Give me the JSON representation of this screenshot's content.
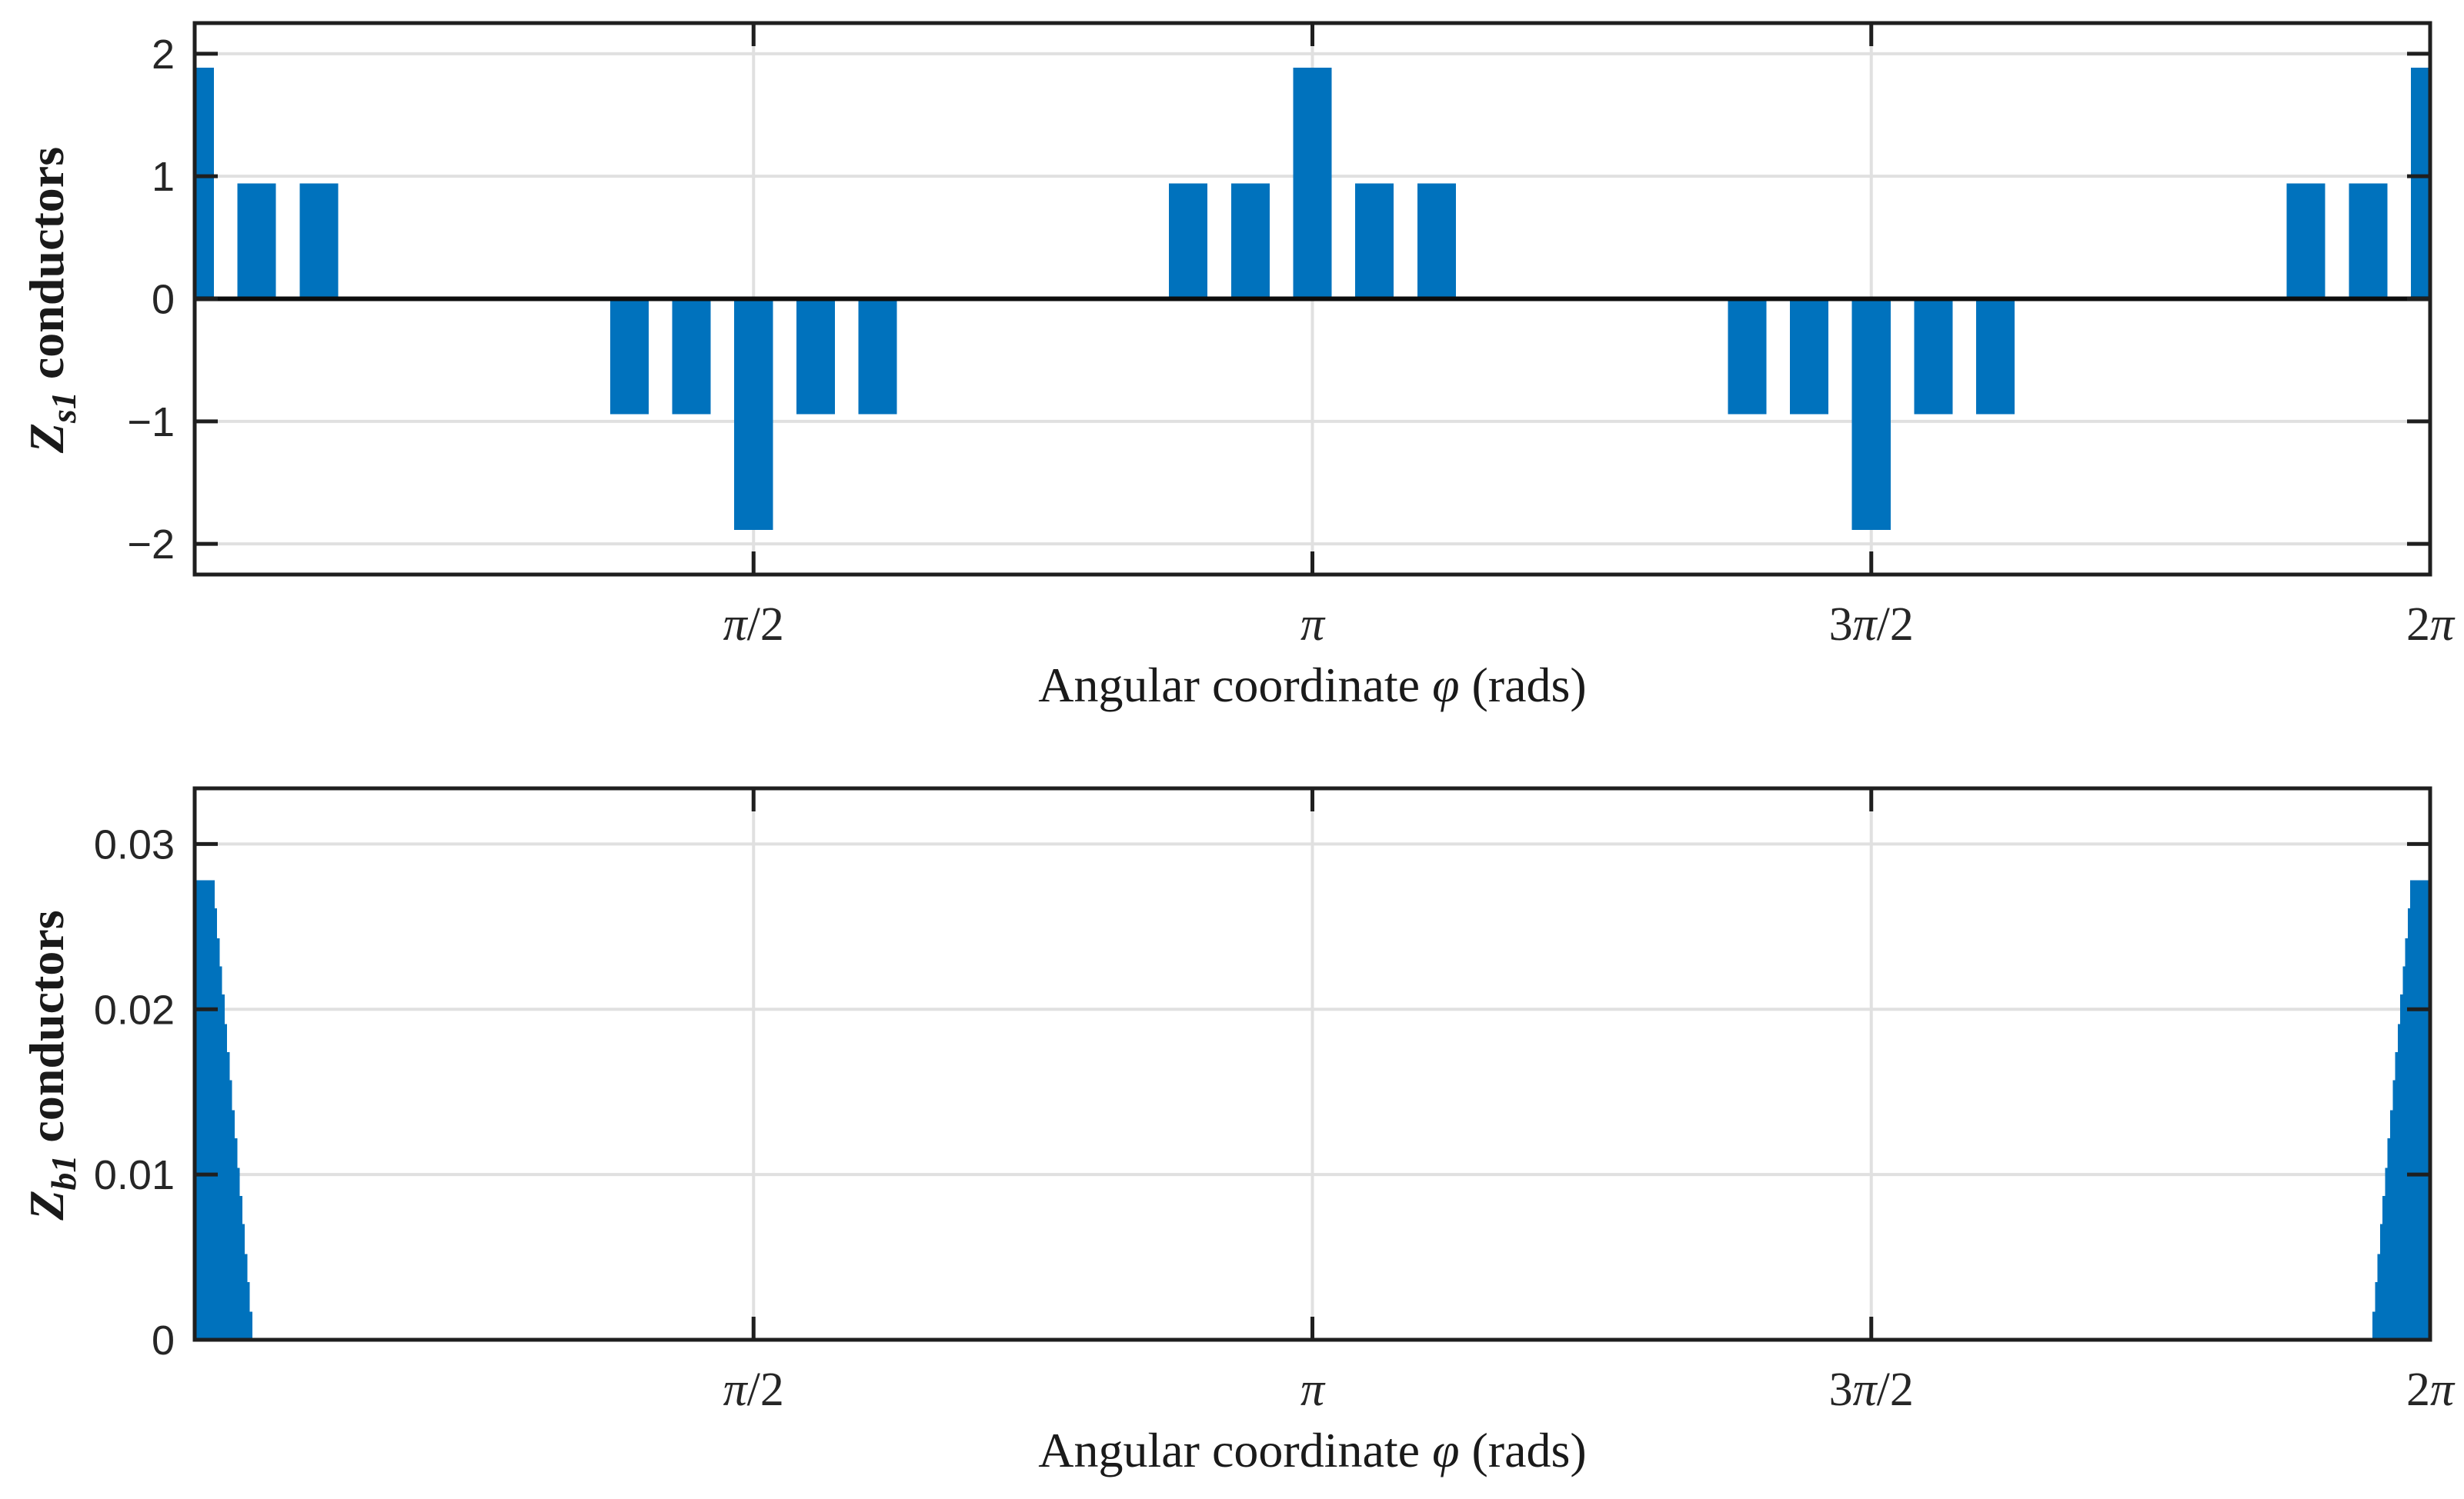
{
  "figure": {
    "bar_color": "#0072BD",
    "axis_color": "#1f1f1f",
    "grid_color": "#e0e0e0",
    "zero_line_color": "#0d0d0d",
    "tick_label_color": "#262626",
    "background": "#ffffff"
  },
  "chart_data": [
    {
      "type": "bar",
      "panel": "top",
      "xlabel": "Angular coordinate φ (rads)",
      "ylabel": {
        "symbol": "Z",
        "subscript": "s1",
        "rest": " conductors"
      },
      "xlim_deg": [
        0,
        360
      ],
      "ylim": [
        -2.25,
        2.25
      ],
      "grid": true,
      "bar_width_deg": 6.2,
      "xticks": [
        {
          "deg": 90,
          "label": "π/2"
        },
        {
          "deg": 180,
          "label": "π"
        },
        {
          "deg": 270,
          "label": "3π/2"
        },
        {
          "deg": 360,
          "label": "2π"
        }
      ],
      "yticks": [
        {
          "value": -2,
          "label": "−2"
        },
        {
          "value": -1,
          "label": "−1"
        },
        {
          "value": 0,
          "label": "0"
        },
        {
          "value": 1,
          "label": "1"
        },
        {
          "value": 2,
          "label": "2"
        }
      ],
      "bars_deg_value": [
        [
          0,
          1.885
        ],
        [
          10,
          0.9425
        ],
        [
          20,
          0.9425
        ],
        [
          70,
          -0.9425
        ],
        [
          80,
          -0.9425
        ],
        [
          90,
          -1.885
        ],
        [
          100,
          -0.9425
        ],
        [
          110,
          -0.9425
        ],
        [
          160,
          0.9425
        ],
        [
          170,
          0.9425
        ],
        [
          180,
          1.885
        ],
        [
          190,
          0.9425
        ],
        [
          200,
          0.9425
        ],
        [
          250,
          -0.9425
        ],
        [
          260,
          -0.9425
        ],
        [
          270,
          -1.885
        ],
        [
          280,
          -0.9425
        ],
        [
          290,
          -0.9425
        ],
        [
          340,
          0.9425
        ],
        [
          350,
          0.9425
        ],
        [
          360,
          1.885
        ]
      ]
    },
    {
      "type": "bar",
      "panel": "bottom",
      "xlabel": "Angular coordinate φ (rads)",
      "ylabel": {
        "symbol": "Z",
        "subscript": "b1",
        "rest": " conductors"
      },
      "xlim_deg": [
        0,
        360
      ],
      "ylim": [
        0,
        0.03337
      ],
      "grid": true,
      "peak_value": 0.0278,
      "step_width_deg": 0.403,
      "xticks": [
        {
          "deg": 90,
          "label": "π/2"
        },
        {
          "deg": 180,
          "label": "π"
        },
        {
          "deg": 270,
          "label": "3π/2"
        },
        {
          "deg": 360,
          "label": "2π"
        }
      ],
      "yticks": [
        {
          "value": 0,
          "label": "0"
        },
        {
          "value": 0.01,
          "label": "0.01"
        },
        {
          "value": 0.02,
          "label": "0.02"
        },
        {
          "value": 0.03,
          "label": "0.03"
        }
      ],
      "left_ramp": {
        "plateau_deg": [
          0,
          3.22
        ],
        "plateau_value": 0.0278,
        "step_values": [
          0.0261,
          0.0243,
          0.0226,
          0.0209,
          0.0191,
          0.0174,
          0.0157,
          0.0139,
          0.0122,
          0.0104,
          0.0087,
          0.007,
          0.0052,
          0.0035,
          0.0017
        ]
      },
      "right_ramp": {
        "start_deg": 350.735,
        "plateau_deg": [
          356.78,
          360
        ],
        "plateau_value": 0.0278,
        "step_values": [
          0.0017,
          0.0035,
          0.0052,
          0.007,
          0.0087,
          0.0104,
          0.0122,
          0.0139,
          0.0157,
          0.0174,
          0.0191,
          0.0209,
          0.0226,
          0.0243,
          0.0261
        ]
      }
    }
  ]
}
